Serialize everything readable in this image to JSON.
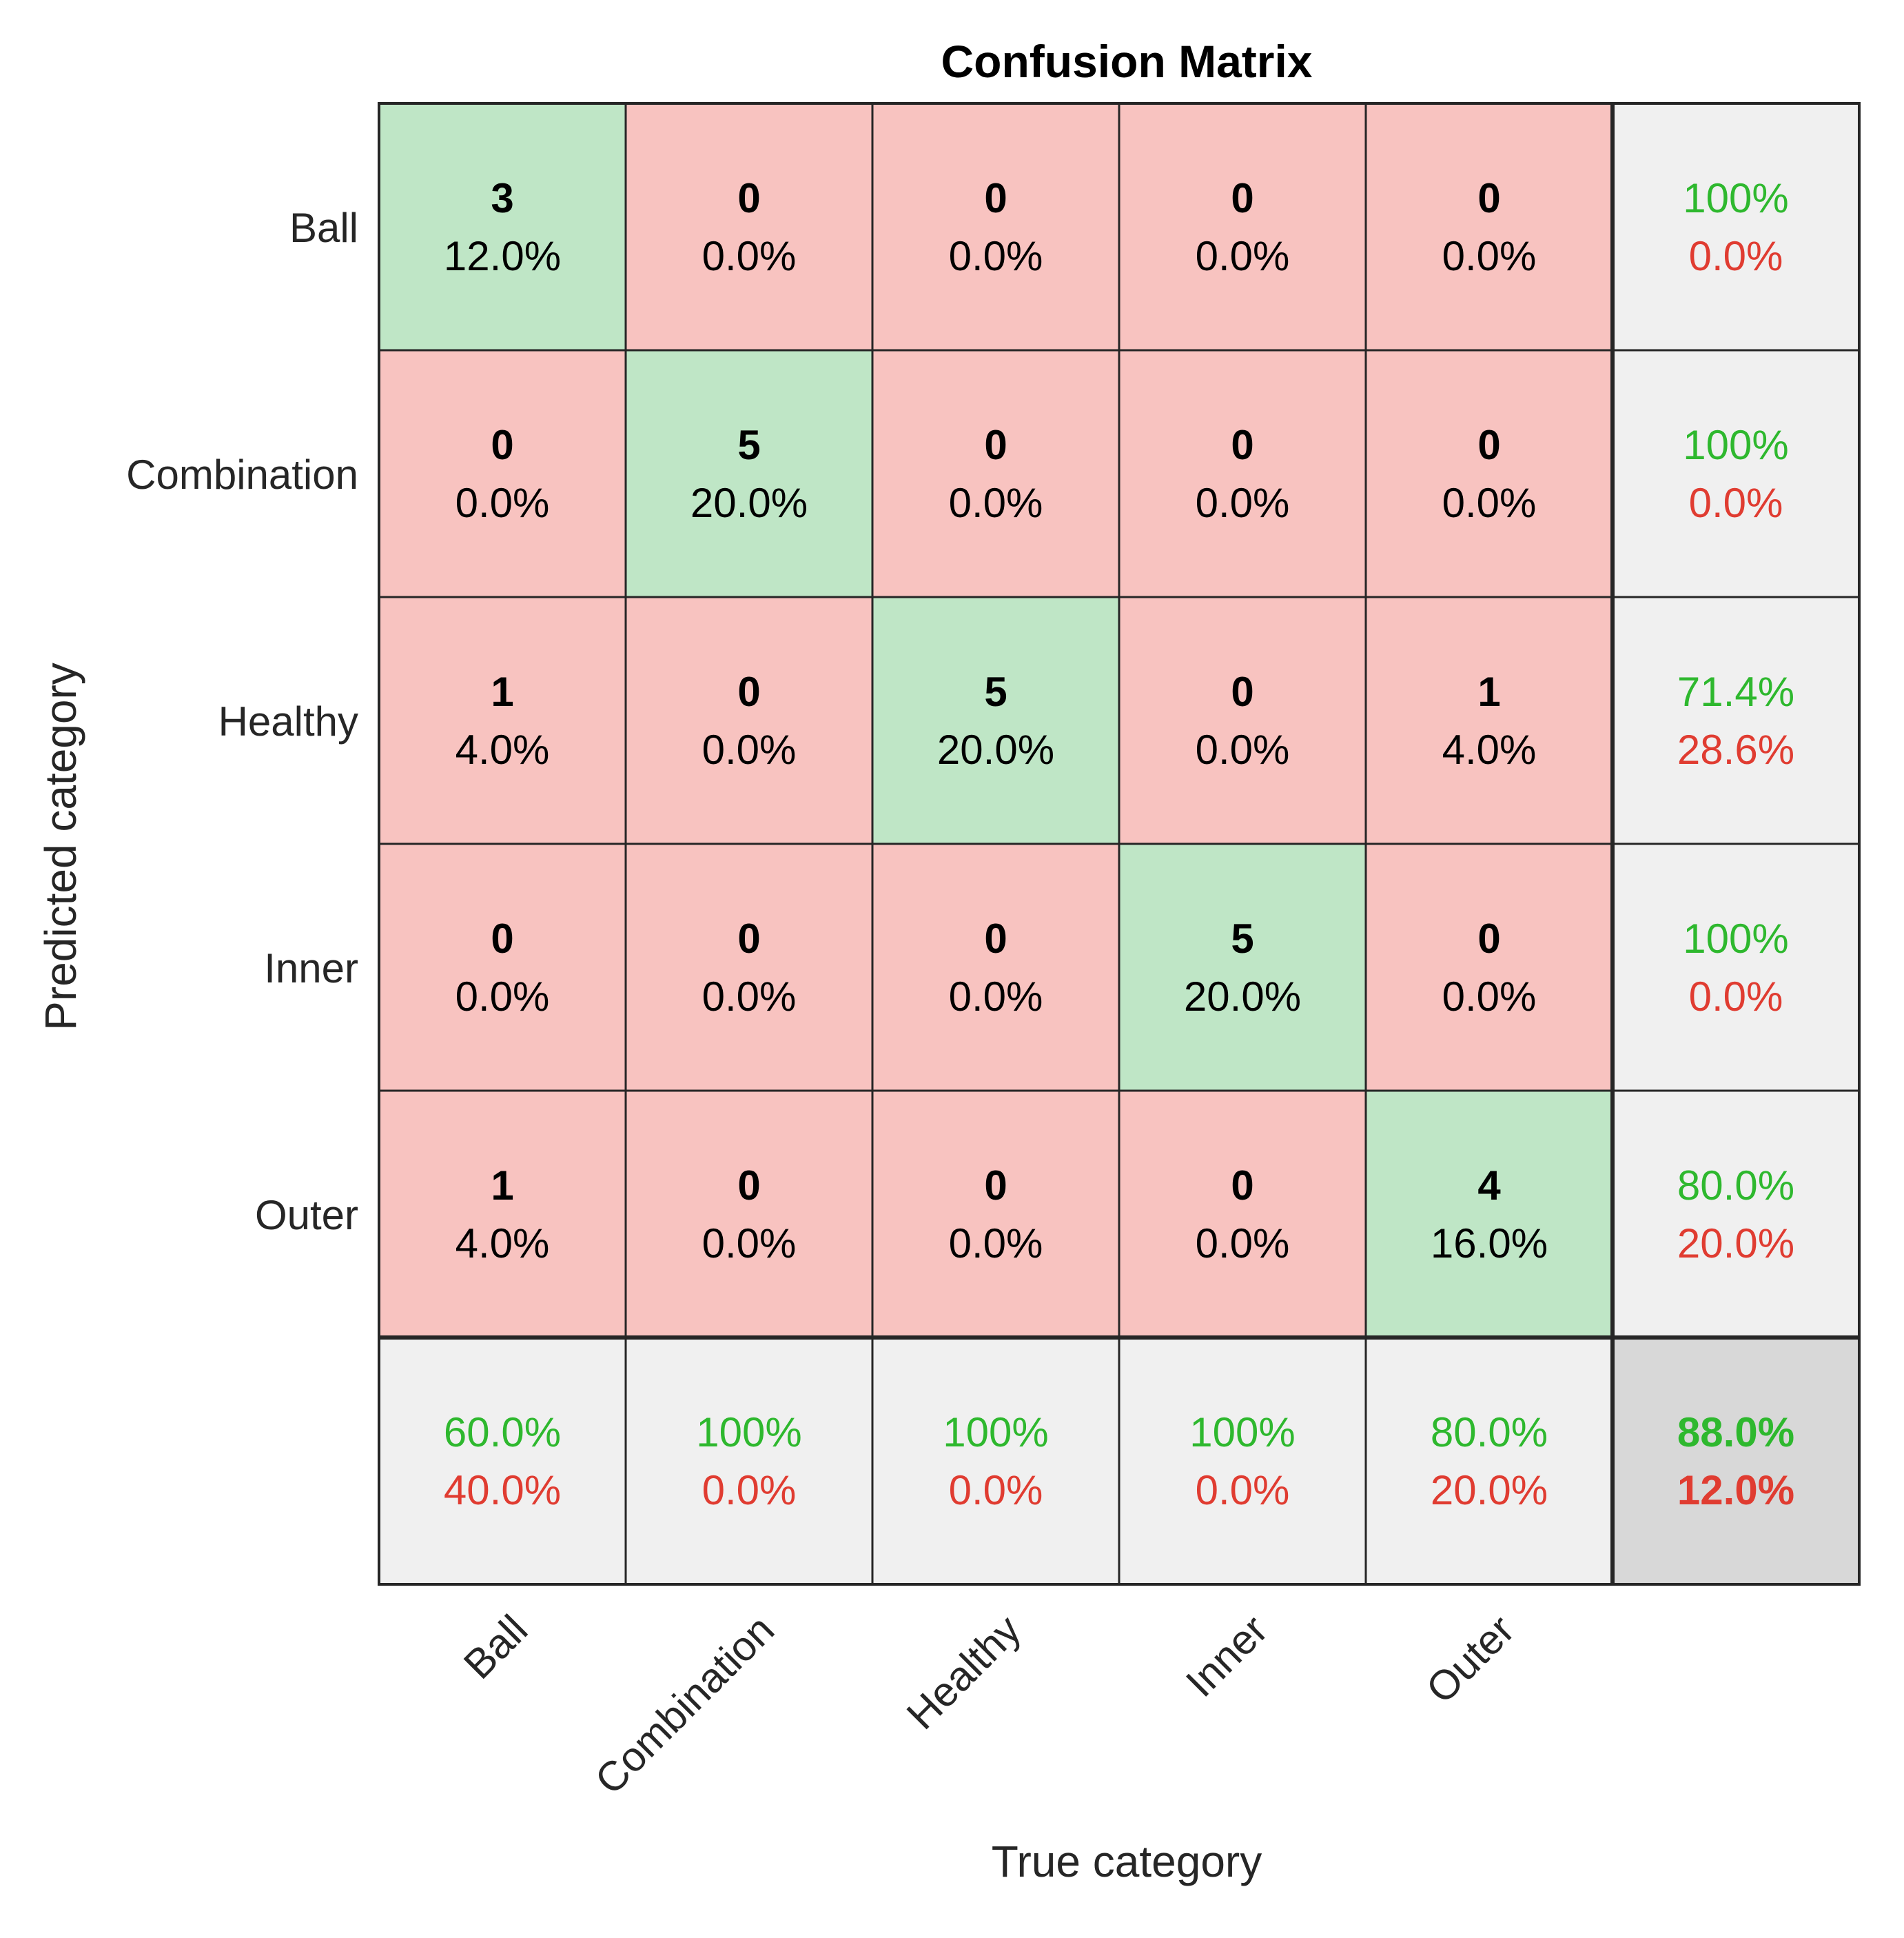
{
  "chart_data": {
    "type": "heatmap",
    "title": "Confusion Matrix",
    "xlabel": "True category",
    "ylabel": "Predicted category",
    "categories": [
      "Ball",
      "Combination",
      "Healthy",
      "Inner",
      "Outer"
    ],
    "counts": [
      [
        3,
        0,
        0,
        0,
        0
      ],
      [
        0,
        5,
        0,
        0,
        0
      ],
      [
        1,
        0,
        5,
        0,
        1
      ],
      [
        0,
        0,
        0,
        5,
        0
      ],
      [
        1,
        0,
        0,
        0,
        4
      ]
    ],
    "percentages": [
      [
        "12.0%",
        "0.0%",
        "0.0%",
        "0.0%",
        "0.0%"
      ],
      [
        "0.0%",
        "20.0%",
        "0.0%",
        "0.0%",
        "0.0%"
      ],
      [
        "4.0%",
        "0.0%",
        "20.0%",
        "0.0%",
        "4.0%"
      ],
      [
        "0.0%",
        "0.0%",
        "0.0%",
        "20.0%",
        "0.0%"
      ],
      [
        "4.0%",
        "0.0%",
        "0.0%",
        "0.0%",
        "16.0%"
      ]
    ],
    "row_summary": [
      {
        "correct": "100%",
        "incorrect": "0.0%"
      },
      {
        "correct": "100%",
        "incorrect": "0.0%"
      },
      {
        "correct": "71.4%",
        "incorrect": "28.6%"
      },
      {
        "correct": "100%",
        "incorrect": "0.0%"
      },
      {
        "correct": "80.0%",
        "incorrect": "20.0%"
      }
    ],
    "col_summary": [
      {
        "correct": "60.0%",
        "incorrect": "40.0%"
      },
      {
        "correct": "100%",
        "incorrect": "0.0%"
      },
      {
        "correct": "100%",
        "incorrect": "0.0%"
      },
      {
        "correct": "100%",
        "incorrect": "0.0%"
      },
      {
        "correct": "80.0%",
        "incorrect": "20.0%"
      }
    ],
    "overall": {
      "correct": "88.0%",
      "incorrect": "12.0%"
    },
    "colors": {
      "diagonal": "#bfe6c6",
      "off_diagonal": "#f8c3c0",
      "summary": "#f0f0f0",
      "overall": "#d8d8d8",
      "correct_text": "#2eb82e",
      "incorrect_text": "#e03c31",
      "grid": "#262626"
    }
  }
}
